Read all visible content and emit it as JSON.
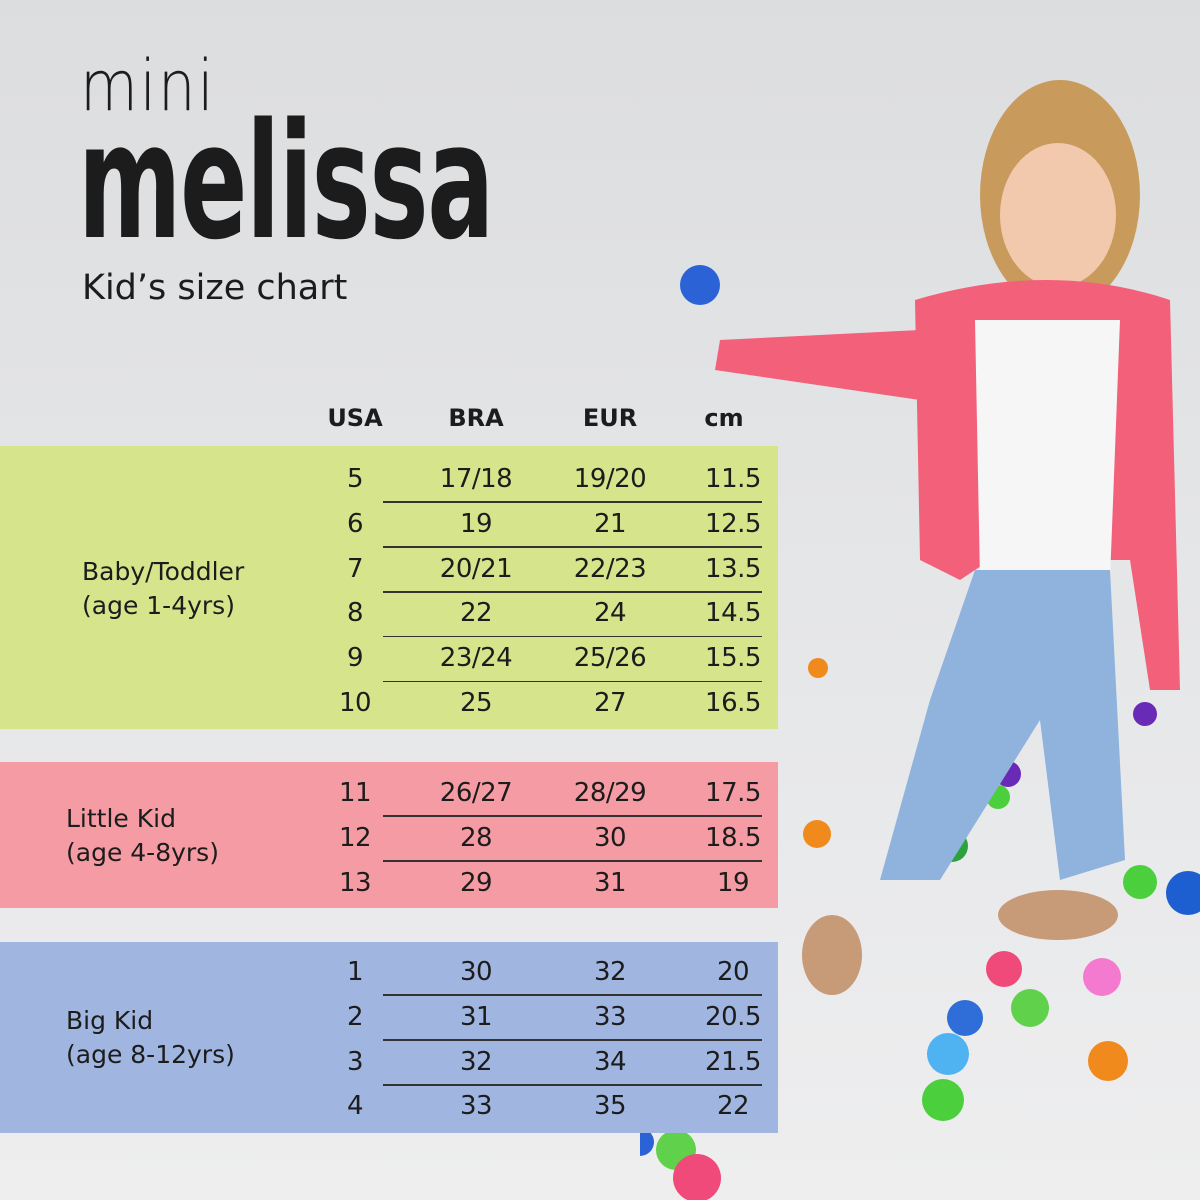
{
  "brand": {
    "line1": "mini",
    "line2": "melissa"
  },
  "subtitle": "Kid’s size chart",
  "columns": [
    "USA",
    "BRA",
    "EUR",
    "cm"
  ],
  "groups": [
    {
      "label": "Baby/Toddler",
      "age": "(age 1-4yrs)",
      "color": "#d6e48c",
      "rows": [
        [
          "5",
          "17/18",
          "19/20",
          "11.5"
        ],
        [
          "6",
          "19",
          "21",
          "12.5"
        ],
        [
          "7",
          "20/21",
          "22/23",
          "13.5"
        ],
        [
          "8",
          "22",
          "24",
          "14.5"
        ],
        [
          "9",
          "23/24",
          "25/26",
          "15.5"
        ],
        [
          "10",
          "25",
          "27",
          "16.5"
        ]
      ]
    },
    {
      "label": "Little Kid",
      "age": "(age 4-8yrs)",
      "color": "#f59ba4",
      "rows": [
        [
          "11",
          "26/27",
          "28/29",
          "17.5"
        ],
        [
          "12",
          "28",
          "30",
          "18.5"
        ],
        [
          "13",
          "29",
          "31",
          "19"
        ]
      ]
    },
    {
      "label": "Big Kid",
      "age": "(age 8-12yrs)",
      "color": "#a0b6e0",
      "rows": [
        [
          "1",
          "30",
          "32",
          "20"
        ],
        [
          "2",
          "31",
          "33",
          "20.5"
        ],
        [
          "3",
          "32",
          "34",
          "21.5"
        ],
        [
          "4",
          "33",
          "35",
          "22"
        ]
      ]
    }
  ]
}
